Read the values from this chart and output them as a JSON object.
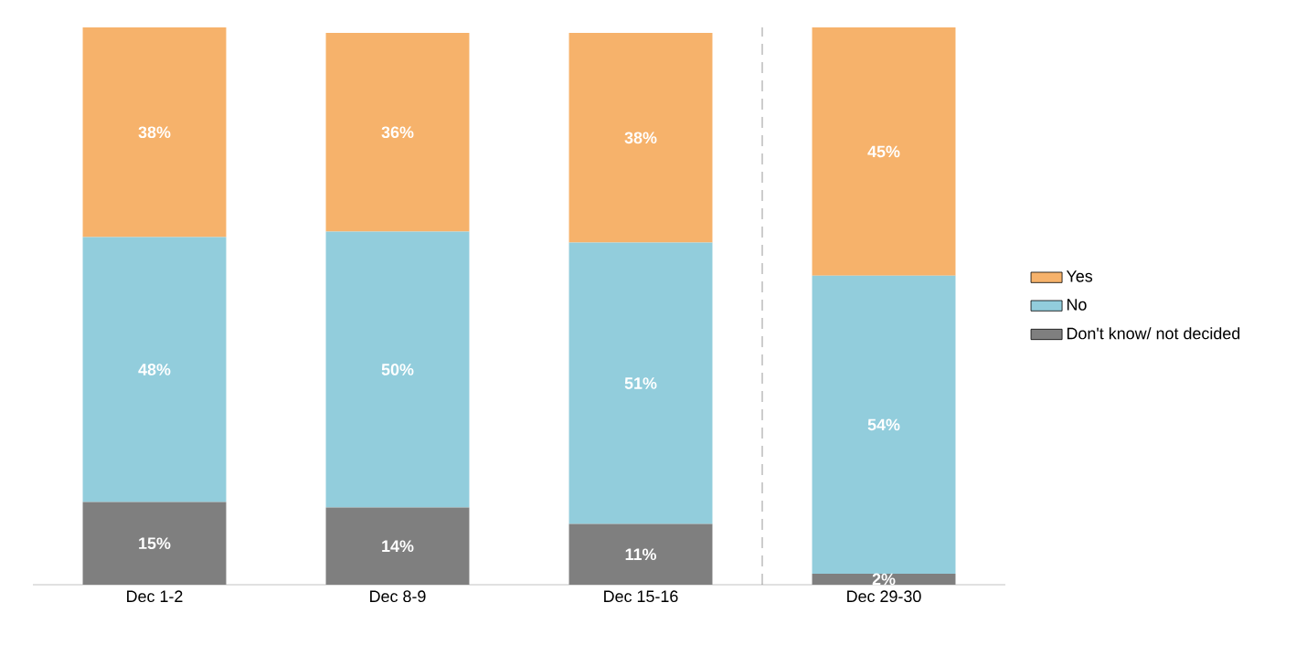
{
  "chart_data": {
    "type": "bar",
    "stacked": true,
    "categories": [
      "Dec 1-2",
      "Dec 8-9",
      "Dec 15-16",
      "Dec 29-30"
    ],
    "series": [
      {
        "name": "Don't know/ not decided",
        "color": "#7f7f7f",
        "values": [
          15,
          14,
          11,
          2
        ],
        "value_labels": [
          "15%",
          "14%",
          "11%",
          "2%"
        ]
      },
      {
        "name": "No",
        "color": "#92cddc",
        "values": [
          48,
          50,
          51,
          54
        ],
        "value_labels": [
          "48%",
          "50%",
          "51%",
          "54%"
        ]
      },
      {
        "name": "Yes",
        "color": "#f6b26b",
        "values": [
          38,
          36,
          38,
          45
        ],
        "value_labels": [
          "38%",
          "36%",
          "38%",
          "45%"
        ]
      }
    ],
    "legend": "right"
  }
}
